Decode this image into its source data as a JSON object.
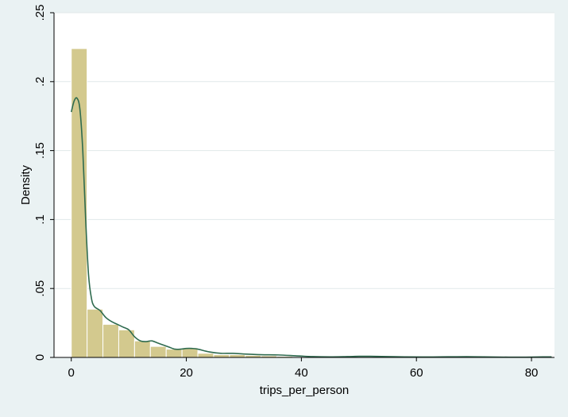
{
  "chart_data": {
    "type": "bar",
    "subtype": "histogram with kernel density overlay",
    "xlabel": "trips_per_person",
    "ylabel": "Density",
    "xlim": [
      -3,
      84
    ],
    "ylim": [
      0,
      0.25
    ],
    "x_ticks": [
      0,
      20,
      40,
      60,
      80
    ],
    "x_tick_labels": [
      "0",
      "20",
      "40",
      "60",
      "80"
    ],
    "y_ticks": [
      0,
      0.05,
      0.1,
      0.15,
      0.2,
      0.25
    ],
    "y_tick_labels": [
      "0",
      ".05",
      ".1",
      ".15",
      ".2",
      ".25"
    ],
    "grid": "horizontal",
    "colors": {
      "background": "#eaf2f3",
      "plot_background": "#ffffff",
      "bar_fill": "#d3c98e",
      "bar_edge": "#ffffff",
      "density_line": "#2f6b4f",
      "grid": "#e1e8ea"
    },
    "bins": [
      {
        "x0": 0.0,
        "x1": 2.75,
        "value": 0.224
      },
      {
        "x0": 2.75,
        "x1": 5.5,
        "value": 0.035
      },
      {
        "x0": 5.5,
        "x1": 8.25,
        "value": 0.024
      },
      {
        "x0": 8.25,
        "x1": 11.0,
        "value": 0.02
      },
      {
        "x0": 11.0,
        "x1": 13.75,
        "value": 0.012
      },
      {
        "x0": 13.75,
        "x1": 16.5,
        "value": 0.008
      },
      {
        "x0": 16.5,
        "x1": 19.25,
        "value": 0.006
      },
      {
        "x0": 19.25,
        "x1": 22.0,
        "value": 0.007
      },
      {
        "x0": 22.0,
        "x1": 24.75,
        "value": 0.003
      },
      {
        "x0": 24.75,
        "x1": 27.5,
        "value": 0.002
      },
      {
        "x0": 27.5,
        "x1": 30.25,
        "value": 0.002
      },
      {
        "x0": 30.25,
        "x1": 33.0,
        "value": 0.0015
      },
      {
        "x0": 33.0,
        "x1": 35.75,
        "value": 0.0012
      },
      {
        "x0": 35.75,
        "x1": 38.5,
        "value": 0.0008
      },
      {
        "x0": 38.5,
        "x1": 41.25,
        "value": 0.0005
      }
    ],
    "density_curve": {
      "x": [
        0,
        0.5,
        1,
        1.5,
        2,
        2.5,
        3,
        3.5,
        4,
        5,
        6,
        7,
        8,
        9,
        10,
        11,
        12,
        13,
        14,
        15,
        16,
        17,
        18,
        19,
        20,
        21,
        22,
        24,
        26,
        28,
        30,
        33,
        36,
        39,
        42,
        45,
        48,
        50,
        52,
        55,
        58,
        61,
        64,
        67,
        70,
        73,
        76,
        79,
        82,
        83.5
      ],
      "y": [
        0.178,
        0.186,
        0.188,
        0.18,
        0.15,
        0.1,
        0.06,
        0.043,
        0.037,
        0.034,
        0.029,
        0.026,
        0.024,
        0.022,
        0.02,
        0.015,
        0.012,
        0.0115,
        0.012,
        0.0105,
        0.009,
        0.0075,
        0.006,
        0.006,
        0.0065,
        0.0065,
        0.006,
        0.004,
        0.003,
        0.003,
        0.0025,
        0.002,
        0.0018,
        0.0012,
        0.0006,
        0.0004,
        0.0006,
        0.0008,
        0.0008,
        0.0006,
        0.0004,
        0.0003,
        0.0004,
        0.0005,
        0.0005,
        0.0003,
        0.0002,
        0.0002,
        0.0004,
        0.0004
      ]
    }
  }
}
